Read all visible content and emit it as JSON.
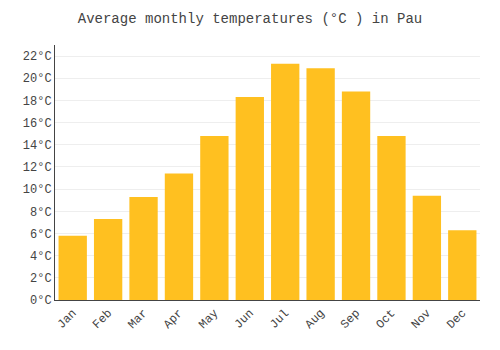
{
  "chart_data": {
    "type": "bar",
    "title": "Average monthly temperatures (°C ) in Pau",
    "categories": [
      "Jan",
      "Feb",
      "Mar",
      "Apr",
      "May",
      "Jun",
      "Jul",
      "Aug",
      "Sep",
      "Oct",
      "Nov",
      "Dec"
    ],
    "values": [
      5.8,
      7.3,
      9.3,
      11.4,
      14.8,
      18.3,
      21.3,
      20.9,
      18.8,
      14.8,
      9.4,
      6.3
    ],
    "color": "#FFC020",
    "ylim": [
      0,
      23
    ],
    "yticks": [
      {
        "value": 0,
        "label": "0°C"
      },
      {
        "value": 2,
        "label": "2°C"
      },
      {
        "value": 4,
        "label": "4°C"
      },
      {
        "value": 6,
        "label": "6°C"
      },
      {
        "value": 8,
        "label": "8°C"
      },
      {
        "value": 10,
        "label": "10°C"
      },
      {
        "value": 12,
        "label": "12°C"
      },
      {
        "value": 14,
        "label": "14°C"
      },
      {
        "value": 16,
        "label": "16°C"
      },
      {
        "value": 18,
        "label": "18°C"
      },
      {
        "value": 20,
        "label": "20°C"
      },
      {
        "value": 22,
        "label": "22°C"
      }
    ],
    "grid": true
  }
}
